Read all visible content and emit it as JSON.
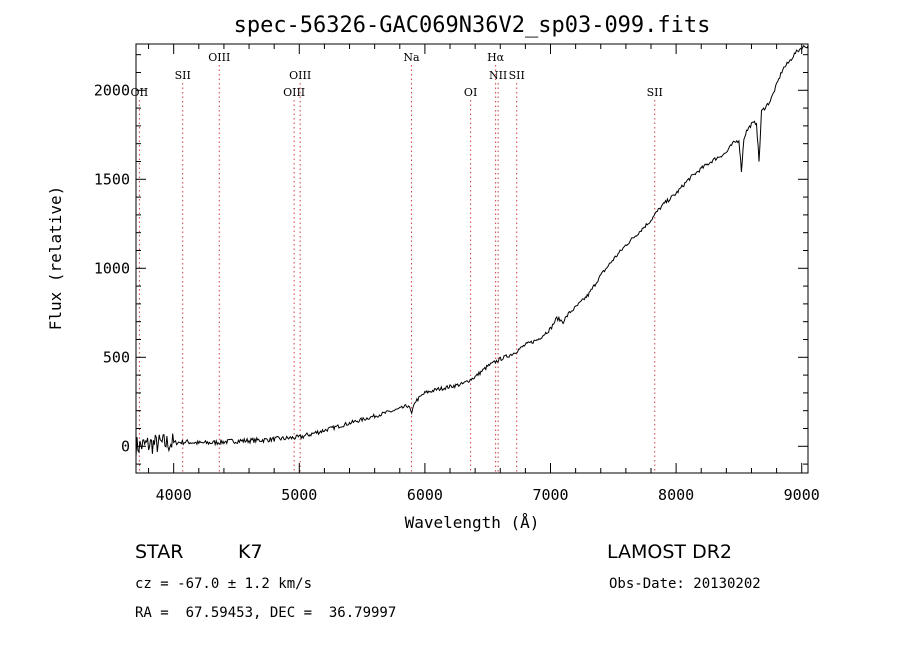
{
  "chart_data": {
    "type": "line",
    "title": "spec-56326-GAC069N36V2_sp03-099.fits",
    "xlabel": "Wavelength (Å)",
    "ylabel": "Flux (relative)",
    "xlim": [
      3700,
      9050
    ],
    "ylim": [
      -150,
      2260
    ],
    "xticks": [
      4000,
      5000,
      6000,
      7000,
      8000,
      9000
    ],
    "yticks": [
      0,
      500,
      1000,
      1500,
      2000
    ],
    "grid": false,
    "series": [
      {
        "x": [
          3700,
          3800,
          3900,
          4000,
          4100,
          4200,
          4300,
          4400,
          4500,
          4600,
          4700,
          4800,
          4900,
          5000,
          5100,
          5200,
          5300,
          5400,
          5500,
          5600,
          5700,
          5800,
          5870,
          5895,
          5920,
          6000,
          6100,
          6200,
          6300,
          6400,
          6500,
          6600,
          6700,
          6800,
          6900,
          7000,
          7050,
          7100,
          7150,
          7200,
          7300,
          7400,
          7500,
          7600,
          7700,
          7800,
          7850,
          7900,
          8000,
          8100,
          8200,
          8300,
          8400,
          8450,
          8500,
          8520,
          8540,
          8560,
          8600,
          8640,
          8660,
          8680,
          8750,
          8800,
          8850,
          8900,
          8950,
          9000,
          9050
        ],
        "y": [
          0,
          10,
          15,
          20,
          25,
          18,
          20,
          25,
          30,
          32,
          35,
          40,
          45,
          50,
          70,
          90,
          110,
          130,
          150,
          170,
          190,
          210,
          230,
          180,
          250,
          300,
          320,
          335,
          350,
          390,
          450,
          490,
          520,
          570,
          600,
          660,
          720,
          700,
          750,
          780,
          850,
          960,
          1050,
          1130,
          1200,
          1270,
          1320,
          1360,
          1420,
          1500,
          1560,
          1610,
          1650,
          1700,
          1720,
          1550,
          1730,
          1770,
          1810,
          1820,
          1600,
          1880,
          1940,
          2030,
          2120,
          2160,
          2210,
          2240,
          2250
        ]
      }
    ],
    "emission_lines": [
      {
        "label": "OII",
        "x": 3727,
        "row": 2
      },
      {
        "label": "SII",
        "x": 4072,
        "row": 1
      },
      {
        "label": "OIII",
        "x": 4363,
        "row": 0
      },
      {
        "label": "OIII",
        "x": 4959,
        "row": 2
      },
      {
        "label": "OIII",
        "x": 5007,
        "row": 1
      },
      {
        "label": "Na",
        "x": 5893,
        "row": 0
      },
      {
        "label": "OI",
        "x": 6364,
        "row": 2
      },
      {
        "label": "Hα",
        "x": 6563,
        "row": 0
      },
      {
        "label": "NII",
        "x": 6583,
        "row": 1
      },
      {
        "label": "SII",
        "x": 6731,
        "row": 1
      },
      {
        "label": "SII",
        "x": 7830,
        "row": 2
      }
    ]
  },
  "info": {
    "class": "STAR",
    "subclass": "K7",
    "survey": "LAMOST DR2",
    "cz": "cz = -67.0 ± 1.2 km/s",
    "obs_date": "Obs-Date: 20130202",
    "radec": "RA =  67.59453, DEC =  36.79997"
  }
}
